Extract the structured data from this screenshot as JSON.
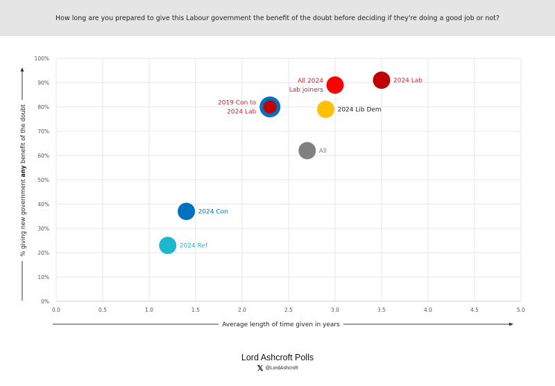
{
  "header": {
    "question": "How long are you prepared to give this Labour government the benefit of the doubt before deciding if they're doing a good job or not?"
  },
  "chart_data": {
    "type": "scatter",
    "title": "How long are you prepared to give this Labour government the benefit of the doubt before deciding if they're doing a good job or not?",
    "xlabel": "Average length of time given in years",
    "ylabel_parts": [
      "% giving  new  government ",
      "any",
      " benefit of the doubt"
    ],
    "xlim": [
      0,
      5
    ],
    "ylim": [
      0,
      100
    ],
    "xticks": [
      "0.0",
      "0.5",
      "1.0",
      "1.5",
      "2.0",
      "2.5",
      "3.0",
      "3.5",
      "4.0",
      "4.5",
      "5.0"
    ],
    "yticks": [
      "0%",
      "10%",
      "20%",
      "30%",
      "40%",
      "50%",
      "60%",
      "70%",
      "80%",
      "90%",
      "100%"
    ],
    "grid": true,
    "points": [
      {
        "label": "2024 Lab",
        "x": 3.5,
        "y": 91,
        "color": "#c00000",
        "label_color": "#c0272d",
        "label_pos": "right"
      },
      {
        "label": "All 2024 Lab joiners",
        "lines": [
          "All 2024",
          "Lab joiners"
        ],
        "x": 3.0,
        "y": 89,
        "color": "#ff0000",
        "label_color": "#c0272d",
        "label_pos": "left"
      },
      {
        "label": "2019 Con to 2024 Lab",
        "lines": [
          "2019 Con to",
          "2024 Lab"
        ],
        "x": 2.3,
        "y": 80,
        "color": "#c00000",
        "ring": "#0070c0",
        "label_color": "#c0272d",
        "label_pos": "left"
      },
      {
        "label": "2024 Lib Dem",
        "x": 2.9,
        "y": 79,
        "color": "#ffc000",
        "label_color": "#222222",
        "label_pos": "right"
      },
      {
        "label": "All",
        "x": 2.7,
        "y": 62,
        "color": "#808080",
        "label_color": "#7f7f7f",
        "label_pos": "right"
      },
      {
        "label": "2024 Con",
        "x": 1.4,
        "y": 37,
        "color": "#0070c0",
        "label_color": "#0070c0",
        "label_pos": "right"
      },
      {
        "label": "2024 Ref",
        "x": 1.2,
        "y": 23,
        "color": "#1fb6d0",
        "label_color": "#1fb6d0",
        "label_pos": "right"
      }
    ]
  },
  "footer": {
    "brand": "Lord Ashcroft Polls",
    "handle": "@LordAshcroft"
  }
}
